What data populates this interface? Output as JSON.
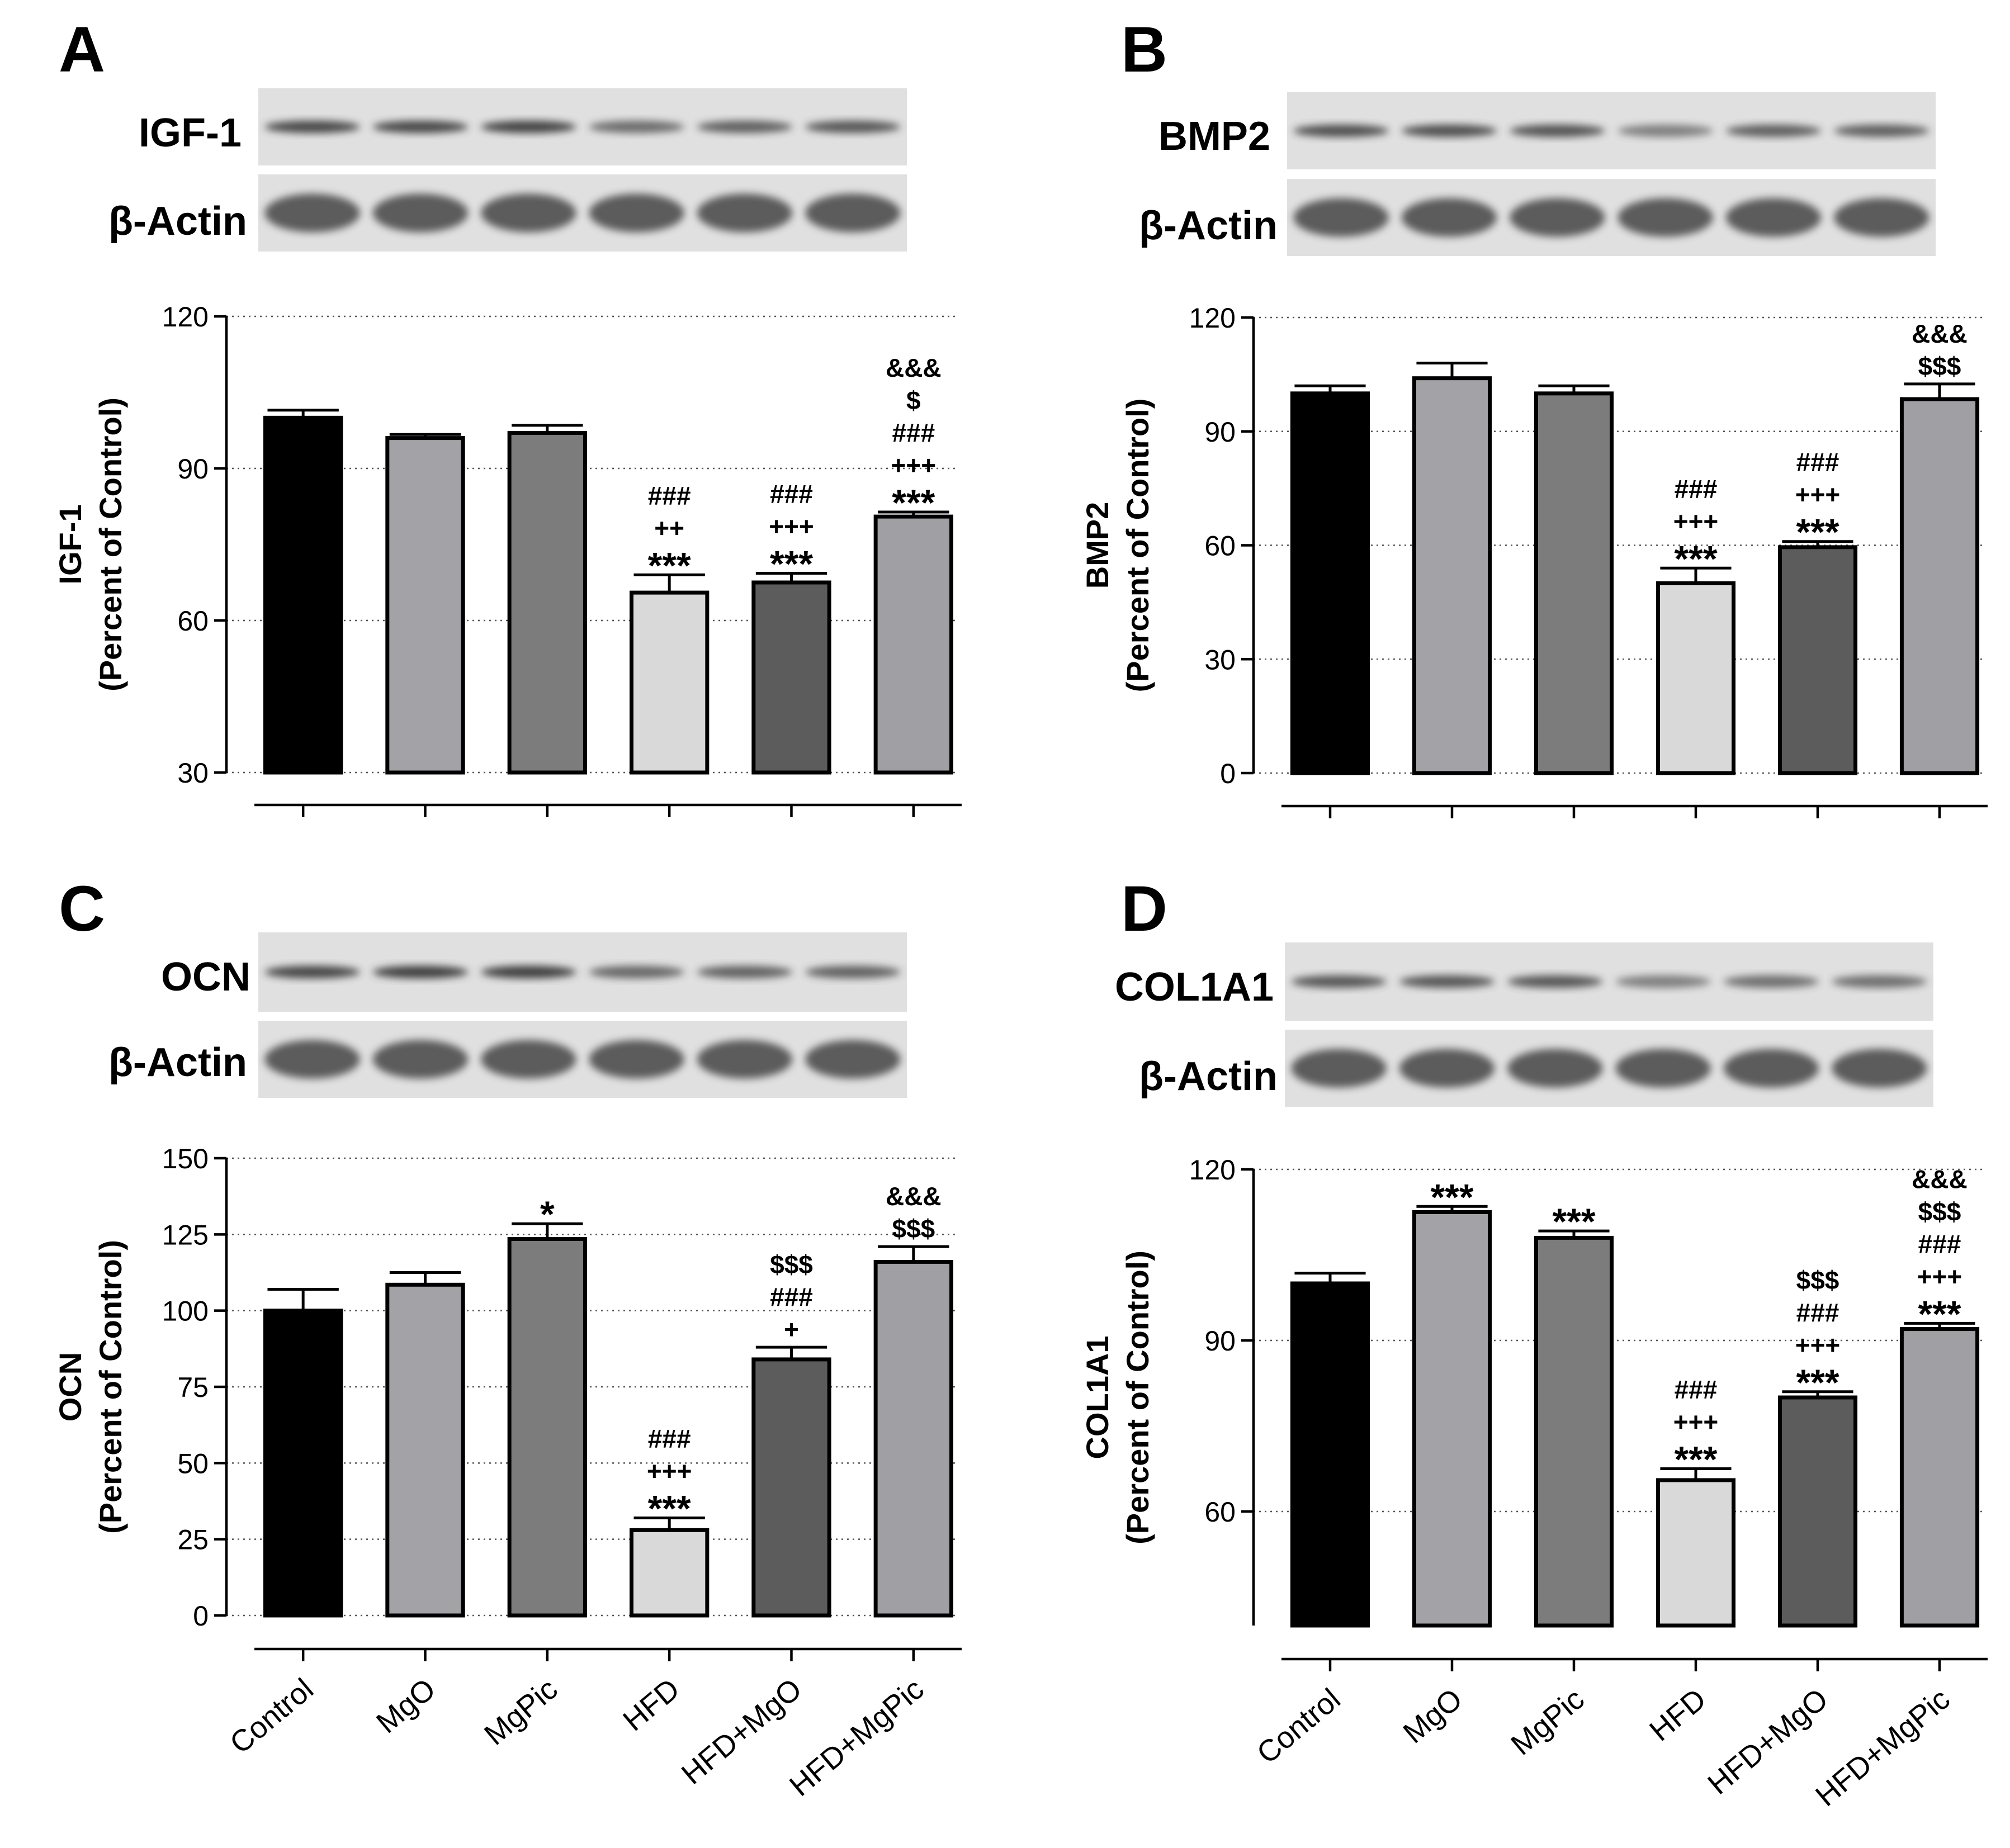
{
  "groups": [
    "Control",
    "MgO",
    "MgPic",
    "HFD",
    "HFD+MgO",
    "HFD+MgPic"
  ],
  "bar_colors": [
    "#000000",
    "#a3a3a7",
    "#7c7c7c",
    "#d9d9d9",
    "#5c5c5c",
    "#a0a0a4"
  ],
  "blot_colors": {
    "background": "#e0e0e0",
    "band_target": "#404040",
    "band_actin": "#555555"
  },
  "loading_control_label": "β-Actin",
  "chart_data": [
    {
      "panel": "A",
      "type": "bar",
      "target": "IGF-1",
      "ylabel": [
        "IGF-1",
        "(Percent of Control)"
      ],
      "ylim": [
        30,
        120
      ],
      "yticks": [
        30,
        60,
        90,
        120
      ],
      "grid": true,
      "show_xlabels": false,
      "categories": [
        "Control",
        "MgO",
        "MgPic",
        "HFD",
        "HFD+MgO",
        "HFD+MgPic"
      ],
      "values": [
        100,
        96,
        97,
        65.5,
        67.5,
        80.5
      ],
      "errors": [
        1.5,
        0.7,
        1.5,
        3.5,
        1.8,
        0.9
      ],
      "annotations": [
        [],
        [],
        [],
        [
          "###",
          "++",
          "***"
        ],
        [
          "###",
          "+++",
          "***"
        ],
        [
          "&&&",
          "$",
          "###",
          "+++",
          "***"
        ]
      ],
      "band_intensity": [
        0.95,
        0.95,
        0.98,
        0.72,
        0.8,
        0.85
      ]
    },
    {
      "panel": "B",
      "type": "bar",
      "target": "BMP2",
      "ylabel": [
        "BMP2",
        "(Percent of Control)"
      ],
      "ylim": [
        0,
        120
      ],
      "yticks": [
        0,
        30,
        60,
        90,
        120
      ],
      "grid": true,
      "show_xlabels": false,
      "categories": [
        "Control",
        "MgO",
        "MgPic",
        "HFD",
        "HFD+MgO",
        "HFD+MgPic"
      ],
      "values": [
        100,
        104,
        100,
        50,
        59.5,
        98.5
      ],
      "errors": [
        2,
        4,
        2,
        4,
        1.5,
        4
      ],
      "annotations": [
        [],
        [],
        [],
        [
          "###",
          "+++",
          "***"
        ],
        [
          "###",
          "+++",
          "***"
        ],
        [
          "&&&",
          "$$$"
        ]
      ],
      "band_intensity": [
        0.9,
        0.9,
        0.88,
        0.6,
        0.8,
        0.8
      ]
    },
    {
      "panel": "C",
      "type": "bar",
      "target": "OCN",
      "ylabel": [
        "OCN",
        "(Percent of Control)"
      ],
      "ylim": [
        0,
        150
      ],
      "yticks": [
        0,
        25,
        50,
        75,
        100,
        125,
        150
      ],
      "grid": true,
      "show_xlabels": true,
      "categories": [
        "Control",
        "MgO",
        "MgPic",
        "HFD",
        "HFD+MgO",
        "HFD+MgPic"
      ],
      "values": [
        100,
        108.5,
        123.5,
        28,
        84,
        116
      ],
      "errors": [
        7,
        4,
        5,
        4,
        4,
        5
      ],
      "annotations": [
        [],
        [],
        [
          "*"
        ],
        [
          "###",
          "+++",
          "***"
        ],
        [
          "$$$",
          "###",
          "+"
        ],
        [
          "&&&",
          "$$$"
        ]
      ],
      "band_intensity": [
        0.95,
        1.0,
        1.0,
        0.75,
        0.78,
        0.78
      ]
    },
    {
      "panel": "D",
      "type": "bar",
      "target": "COL1A1",
      "ylabel": [
        "COL1A1",
        "(Percent of Control)"
      ],
      "ylim": [
        40,
        120
      ],
      "yticks": [
        60,
        90,
        120
      ],
      "grid": true,
      "show_xlabels": true,
      "categories": [
        "Control",
        "MgO",
        "MgPic",
        "HFD",
        "HFD+MgO",
        "HFD+MgPic"
      ],
      "values": [
        100,
        112.5,
        108,
        65.5,
        80,
        92
      ],
      "errors": [
        1.8,
        1,
        1.2,
        2,
        1,
        1
      ],
      "annotations": [
        [],
        [
          "***"
        ],
        [
          "***"
        ],
        [
          "###",
          "+++",
          "***"
        ],
        [
          "$$$",
          "###",
          "+++",
          "***"
        ],
        [
          "&&&",
          "$$$",
          "###",
          "+++",
          "***"
        ]
      ],
      "band_intensity": [
        0.85,
        0.85,
        0.85,
        0.6,
        0.7,
        0.7
      ]
    }
  ]
}
